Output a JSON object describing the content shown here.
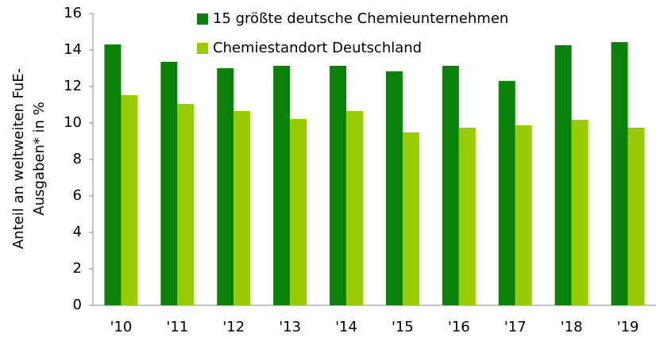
{
  "chart_data": {
    "type": "bar",
    "ylabel": [
      "Anteil an weltweiten FuE-",
      "Ausgaben* in %"
    ],
    "categories": [
      "'10",
      "'11",
      "'12",
      "'13",
      "'14",
      "'15",
      "'16",
      "'17",
      "'18",
      "'19"
    ],
    "series": [
      {
        "name": "15 größte deutsche Chemieunternehmen",
        "color": "#0a820a",
        "values": [
          14.3,
          13.35,
          13.0,
          13.13,
          13.13,
          12.83,
          13.13,
          12.3,
          14.26,
          14.43
        ]
      },
      {
        "name": "Chemiestandort Deutschland",
        "color": "#99cc00",
        "values": [
          11.52,
          11.04,
          10.65,
          10.22,
          10.65,
          9.48,
          9.74,
          9.87,
          10.17,
          9.74
        ]
      }
    ],
    "ylim": [
      0,
      16
    ],
    "yticks": [
      0,
      2,
      4,
      6,
      8,
      10,
      12,
      14,
      16
    ],
    "grid": false,
    "legend": "top-left"
  }
}
